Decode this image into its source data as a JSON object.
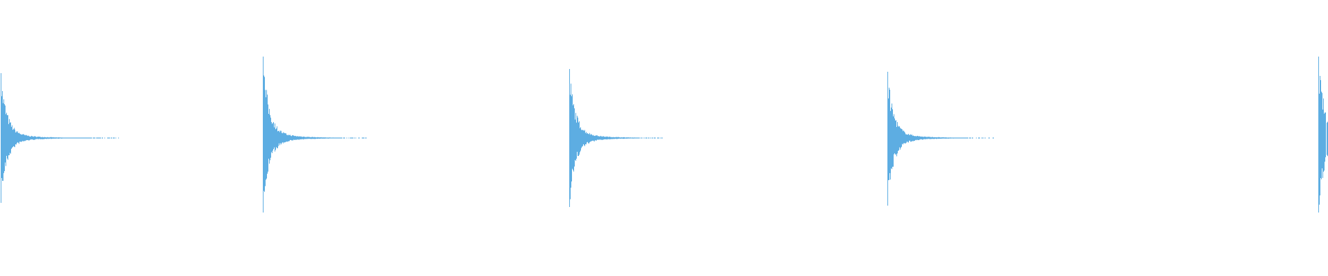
{
  "chart_data": {
    "type": "area",
    "description_kind": "audio-waveform",
    "title": "",
    "xlabel": "",
    "ylabel": "",
    "ylim": [
      -1,
      1
    ],
    "grid": false,
    "legend": "none",
    "color": "#5DADE2",
    "background": "#FFFFFF",
    "bursts": [
      {
        "peak_positive": 0.47,
        "peak_negative": -0.47
      },
      {
        "peak_positive": 0.59,
        "peak_negative": -0.54
      },
      {
        "peak_positive": 0.5,
        "peak_negative": -0.5
      },
      {
        "peak_positive": 0.48,
        "peak_negative": -0.49
      },
      {
        "peak_positive": 0.59,
        "peak_negative": -0.54
      }
    ]
  }
}
